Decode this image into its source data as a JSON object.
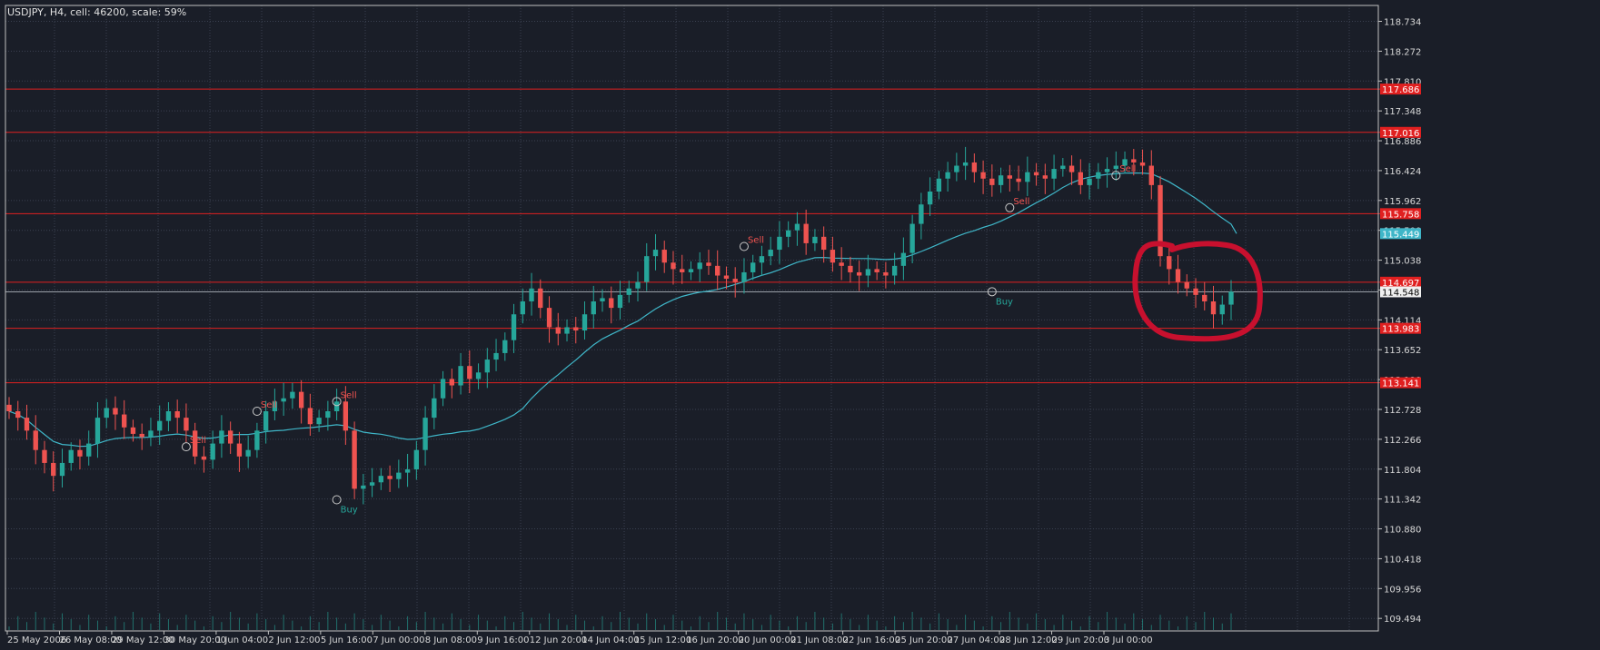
{
  "header": {
    "title": "USDJPY, H4, cell: 46200, scale: 59%"
  },
  "colors": {
    "background": "#1a1e28",
    "grid": "#3a4050",
    "frame": "#c0c0c0",
    "bull": "#26a69a",
    "bear": "#ef5350",
    "ma": "#3fb6c8",
    "level": "#e02020",
    "annotation": "#c8102e"
  },
  "chart_data": {
    "type": "candlestick",
    "symbol": "USDJPY",
    "timeframe": "H4",
    "price_ticks": [
      "118.734",
      "118.272",
      "117.810",
      "117.348",
      "116.886",
      "116.424",
      "115.962",
      "115.500",
      "115.038",
      "114.576",
      "114.114",
      "113.652",
      "113.190",
      "112.728",
      "112.266",
      "111.804",
      "111.342",
      "110.880",
      "110.418",
      "109.956",
      "109.494"
    ],
    "time_ticks": [
      "25 May 2006",
      "26 May 08:00",
      "29 May 12:00",
      "30 May 20:00",
      "1 Jun 04:00",
      "2 Jun 12:00",
      "5 Jun 16:00",
      "7 Jun 00:00",
      "8 Jun 08:00",
      "9 Jun 16:00",
      "12 Jun 20:00",
      "14 Jun 04:00",
      "15 Jun 12:00",
      "16 Jun 20:00",
      "20 Jun 00:00",
      "21 Jun 08:00",
      "22 Jun 16:00",
      "25 Jun 20:00",
      "27 Jun 04:00",
      "28 Jun 12:00",
      "29 Jun 20:00",
      "3 Jul 00:00"
    ],
    "price_range": [
      109.3,
      118.98
    ],
    "levels": [
      {
        "price": 117.686,
        "label": "117.686"
      },
      {
        "price": 117.016,
        "label": "117.016"
      },
      {
        "price": 115.758,
        "label": "115.758"
      },
      {
        "price": 114.697,
        "label": "114.697"
      },
      {
        "price": 113.983,
        "label": "113.983"
      },
      {
        "price": 113.141,
        "label": "113.141"
      }
    ],
    "markers": [
      {
        "price": 115.449,
        "label": "115.449",
        "kind": "ma"
      },
      {
        "price": 114.548,
        "label": "114.548",
        "kind": "current"
      }
    ],
    "close": [
      112.7,
      112.6,
      112.4,
      112.1,
      111.9,
      111.7,
      111.9,
      112.1,
      112.0,
      112.2,
      112.6,
      112.75,
      112.65,
      112.45,
      112.35,
      112.3,
      112.4,
      112.55,
      112.7,
      112.6,
      112.4,
      112.0,
      111.95,
      112.2,
      112.4,
      112.2,
      112.0,
      112.1,
      112.4,
      112.7,
      112.85,
      112.9,
      113.0,
      112.75,
      112.5,
      112.6,
      112.7,
      112.85,
      112.4,
      111.5,
      111.55,
      111.6,
      111.7,
      111.65,
      111.75,
      111.8,
      112.1,
      112.6,
      112.9,
      113.2,
      113.1,
      113.4,
      113.2,
      113.3,
      113.5,
      113.6,
      113.8,
      114.2,
      114.4,
      114.6,
      114.3,
      114.0,
      113.9,
      114.0,
      113.95,
      114.2,
      114.4,
      114.45,
      114.3,
      114.5,
      114.6,
      114.7,
      115.1,
      115.2,
      115.0,
      114.9,
      114.85,
      114.9,
      115.0,
      114.95,
      114.8,
      114.75,
      114.7,
      114.85,
      115.0,
      115.1,
      115.2,
      115.4,
      115.5,
      115.6,
      115.3,
      115.4,
      115.2,
      115.0,
      114.95,
      114.85,
      114.8,
      114.9,
      114.85,
      114.8,
      114.95,
      115.15,
      115.6,
      115.9,
      116.1,
      116.3,
      116.4,
      116.5,
      116.55,
      116.4,
      116.3,
      116.2,
      116.35,
      116.3,
      116.25,
      116.4,
      116.35,
      116.3,
      116.45,
      116.5,
      116.4,
      116.2,
      116.3,
      116.4,
      116.45,
      116.5,
      116.6,
      116.55,
      116.5,
      116.2,
      115.1,
      114.9,
      114.7,
      114.6,
      114.5,
      114.4,
      114.2,
      114.35,
      114.55
    ],
    "ma_period": 20,
    "signals": [
      {
        "label": "Sell",
        "index": 37,
        "price": 112.85,
        "kind": "sell"
      },
      {
        "label": "Buy",
        "index": 37,
        "price": 111.33,
        "kind": "buy"
      },
      {
        "label": "Sell",
        "index": 28,
        "price": 112.7,
        "kind": "sell"
      },
      {
        "label": "Sell",
        "index": 20,
        "price": 112.15,
        "kind": "sell"
      },
      {
        "label": "Sell",
        "index": 83,
        "price": 115.25,
        "kind": "sell"
      },
      {
        "label": "Buy",
        "index": 111,
        "price": 114.55,
        "kind": "buy"
      },
      {
        "label": "Sell",
        "index": 113,
        "price": 115.85,
        "kind": "sell"
      },
      {
        "label": "Sell",
        "index": 125,
        "price": 116.35,
        "kind": "sell"
      }
    ]
  }
}
